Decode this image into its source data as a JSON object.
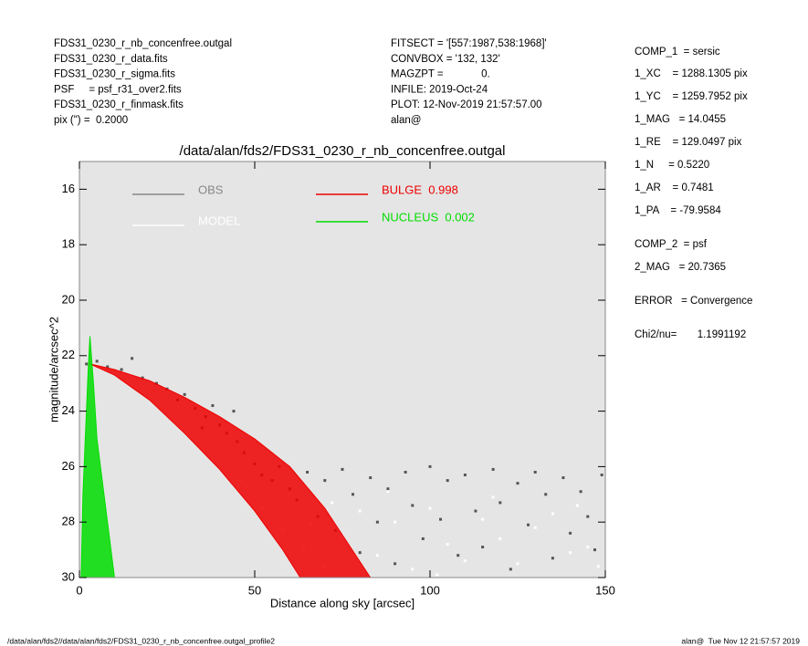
{
  "header": {
    "left": [
      "FDS31_0230_r_nb_concenfree.outgal",
      "FDS31_0230_r_data.fits",
      "FDS31_0230_r_sigma.fits",
      "PSF     = psf_r31_over2.fits",
      "FDS31_0230_r_finmask.fits",
      "pix (\") =  0.2000"
    ],
    "middle": [
      "FITSECT = '[557:1987,538:1968]'",
      "CONVBOX = '132, 132'",
      "MAGZPT =             0.",
      "INFILE: 2019-Oct-24",
      "PLOT: 12-Nov-2019 21:57:57.00",
      "alan@"
    ],
    "right": [
      "COMP_1  = sersic",
      "1_XC    = 1288.1305 pix",
      "1_YC    = 1259.7952 pix",
      "1_MAG   = 14.0455",
      "1_RE    = 129.0497 pix",
      "1_N     = 0.5220",
      "1_AR    = 0.7481",
      "1_PA    = -79.9584",
      "COMP_2  = psf",
      "2_MAG   = 20.7365",
      "ERROR   = Convergence",
      "Chi2/nu=       1.1991192"
    ]
  },
  "footer": {
    "left": "/data/alan/fds2//data/alan/fds2/FDS31_0230_r_nb_concenfree.outgal_profile2",
    "right": "alan@  Tue Nov 12 21:57:57 2019"
  },
  "chart_data": {
    "type": "scatter",
    "title": "/data/alan/fds2/FDS31_0230_r_nb_concenfree.outgal",
    "xlabel": "Distance along sky [arcsec]",
    "ylabel": "magnitude/arcsec^2",
    "xlim": [
      0,
      150
    ],
    "ylim": [
      30,
      15
    ],
    "xticks": [
      0,
      50,
      100,
      150
    ],
    "yticks": [
      16,
      18,
      20,
      22,
      24,
      26,
      28,
      30
    ],
    "background": "#e5e5e5",
    "series": [
      {
        "name": "OBS",
        "color": "#555555",
        "style": "points",
        "x": [
          2,
          5,
          8,
          12,
          15,
          18,
          22,
          25,
          28,
          30,
          33,
          36,
          38,
          40,
          42,
          45,
          47,
          50,
          52,
          55,
          57,
          60,
          62,
          65,
          68,
          70,
          73,
          75,
          78,
          80,
          83,
          85,
          88,
          90,
          93,
          95,
          98,
          100,
          103,
          105,
          108,
          110,
          113,
          115,
          118,
          120,
          123,
          125,
          128,
          130,
          133,
          135,
          138,
          140,
          143,
          145,
          147,
          149,
          35,
          44
        ],
        "values": [
          22.3,
          22.2,
          22.4,
          22.5,
          22.1,
          22.8,
          23.0,
          23.2,
          23.6,
          23.4,
          23.9,
          24.2,
          23.8,
          24.5,
          24.8,
          25.1,
          25.5,
          25.9,
          26.3,
          26.5,
          26.0,
          26.8,
          27.2,
          26.2,
          27.8,
          26.5,
          28.3,
          26.1,
          27.0,
          29.1,
          26.4,
          28.0,
          26.8,
          29.5,
          26.2,
          27.4,
          28.6,
          26.0,
          27.9,
          26.5,
          29.2,
          26.3,
          27.6,
          28.9,
          26.1,
          27.3,
          29.7,
          26.6,
          28.1,
          26.2,
          27.0,
          29.3,
          26.4,
          28.4,
          26.9,
          27.8,
          29.0,
          26.3,
          24.6,
          24.0
        ]
      },
      {
        "name": "MODEL",
        "color": "#ffffff",
        "style": "points",
        "x": [
          46,
          52,
          58,
          64,
          70,
          60,
          66,
          75,
          80,
          85,
          90,
          95,
          100,
          105,
          110,
          115,
          120,
          125,
          130,
          135,
          140,
          145,
          148,
          72,
          88,
          102,
          118,
          142
        ],
        "values": [
          26.5,
          27.5,
          28.3,
          29.0,
          29.6,
          27.0,
          28.1,
          28.5,
          27.6,
          29.2,
          28.0,
          29.7,
          27.5,
          28.8,
          29.4,
          27.9,
          28.6,
          29.5,
          28.2,
          27.7,
          29.1,
          28.9,
          29.6,
          27.3,
          26.9,
          29.9,
          27.1,
          27.4
        ]
      },
      {
        "name": "BULGE  0.998",
        "color": "#ee0000",
        "style": "band",
        "x": [
          3,
          10,
          20,
          30,
          40,
          50,
          60,
          70,
          83,
          63,
          58,
          50,
          40,
          30,
          20,
          10,
          3
        ],
        "values": [
          22.3,
          22.5,
          22.9,
          23.5,
          24.2,
          25.0,
          26.0,
          27.5,
          30,
          30,
          29.0,
          27.6,
          26.1,
          24.8,
          23.6,
          22.7,
          22.3
        ]
      },
      {
        "name": "NUCLEUS  0.002",
        "color": "#00dd00",
        "style": "band",
        "x": [
          3,
          4,
          5,
          7,
          10,
          0.5,
          1,
          2,
          2.5
        ],
        "values": [
          21.3,
          23,
          25,
          27,
          30,
          30,
          27,
          24,
          22.5
        ]
      }
    ]
  }
}
